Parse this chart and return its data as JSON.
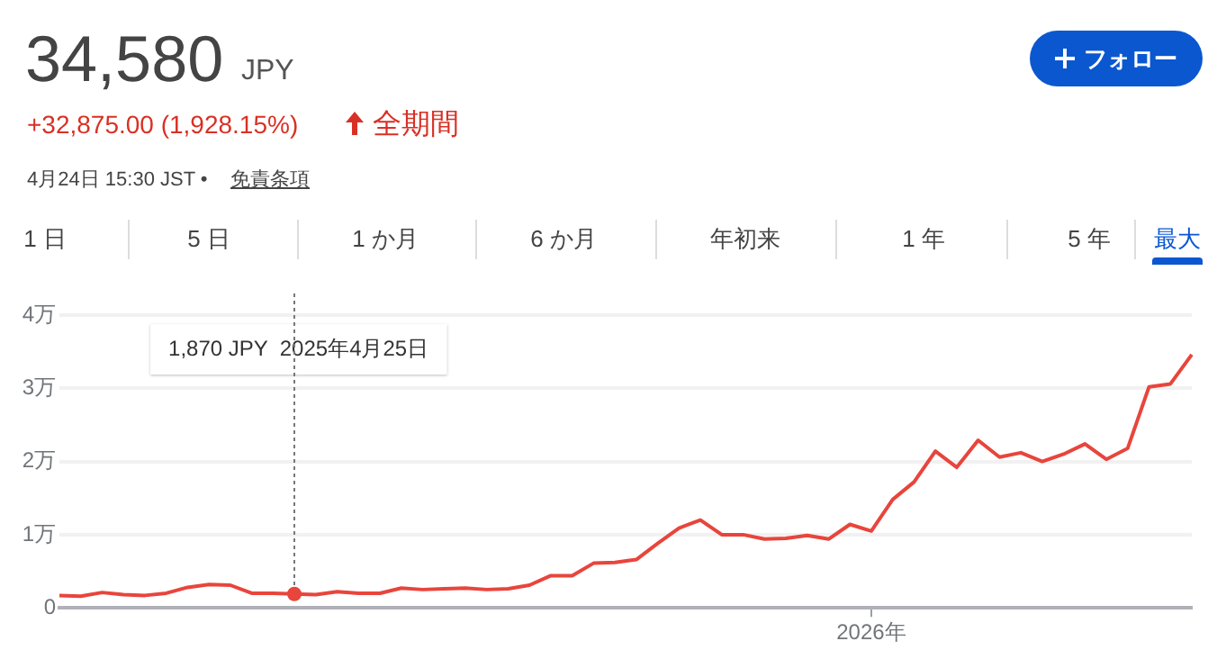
{
  "chart_data": {
    "type": "line",
    "title": "34,580",
    "annotations": [
      "JPY",
      "+32,875.00 (1,928.15%)",
      "全期間",
      "4月24日 15:30 JST •",
      "免責条項",
      "フォロー",
      "1 日",
      "5 日",
      "1 か月",
      "6 か月",
      "年初来",
      "1 年",
      "5 年",
      "最大",
      "1,870 JPY  2025年4月25日"
    ],
    "categories": [
      null,
      null,
      null,
      null,
      null,
      null,
      null,
      null,
      null,
      null,
      null,
      null,
      null,
      null,
      null,
      null,
      null,
      null,
      null,
      null,
      null,
      null,
      null,
      null,
      null,
      null,
      null,
      null,
      null,
      null,
      null,
      null,
      null,
      null,
      null,
      null,
      null,
      null,
      "2026年",
      null,
      null,
      null,
      null,
      null,
      null,
      null,
      null,
      null,
      null,
      null,
      null,
      null,
      null,
      null
    ],
    "series": [
      {
        "color": "#e8453c",
        "values": [
          0.17,
          0.16,
          0.21,
          0.18,
          0.17,
          0.2,
          0.28,
          0.32,
          0.31,
          0.2,
          0.2,
          0.19,
          0.18,
          0.22,
          0.2,
          0.2,
          0.27,
          0.25,
          0.26,
          0.27,
          0.25,
          0.26,
          0.31,
          0.44,
          0.44,
          0.61,
          0.62,
          0.66,
          0.88,
          1.09,
          1.2,
          1.0,
          1.0,
          0.94,
          0.95,
          0.99,
          0.94,
          1.14,
          1.05,
          1.48,
          1.72,
          2.14,
          1.92,
          2.29,
          2.06,
          2.12,
          2,
          2.1,
          2.24,
          2.03,
          2.18,
          3.02,
          3.06,
          3.46
        ]
      }
    ],
    "ylim": [
      0,
      4
    ],
    "yticks": [
      0,
      {
        "value": 1,
        "label": "1万"
      },
      {
        "value": 2,
        "label": "2万"
      },
      {
        "value": 3,
        "label": "3万"
      },
      {
        "value": 4,
        "label": "4万"
      }
    ],
    "grid": "y",
    "legend": false,
    "marker": "none",
    "line_style": "solid"
  }
}
